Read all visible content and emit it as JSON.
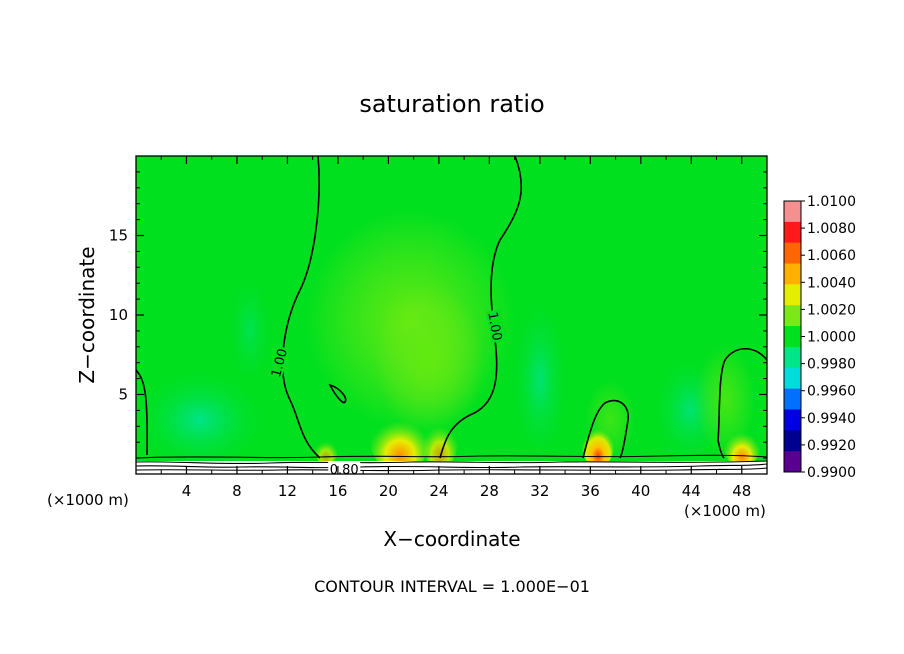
{
  "chart_data": {
    "type": "heatmap",
    "title": "saturation ratio",
    "xlabel": "X−coordinate",
    "ylabel": "Z−coordinate",
    "x_unit_label": "(×1000 m)",
    "x_unit_label_right": "(×1000 m)",
    "xlim": [
      0,
      50
    ],
    "ylim": [
      0,
      20
    ],
    "x_ticks": [
      4,
      8,
      12,
      16,
      20,
      24,
      28,
      32,
      36,
      40,
      44,
      48
    ],
    "y_ticks": [
      5,
      10,
      15
    ],
    "footnote": "CONTOUR INTERVAL = 1.000E−01",
    "contour_interval": 0.1,
    "contour_labels": [
      {
        "text": "1.00",
        "x": 11.3,
        "z": 7.0
      },
      {
        "text": "1.00",
        "x": 28.5,
        "z": 9.3
      },
      {
        "text": "0.80",
        "x": 16.5,
        "z": 0.3
      }
    ],
    "colorbar": {
      "levels": [
        "1.0100",
        "1.0080",
        "1.0060",
        "1.0040",
        "1.0020",
        "1.0000",
        "0.9980",
        "0.9960",
        "0.9940",
        "0.9920",
        "0.9900"
      ],
      "colors": [
        "#f49090",
        "#ff1a1a",
        "#ff6600",
        "#ffb000",
        "#e6ee00",
        "#7be81a",
        "#00e01e",
        "#00e48a",
        "#00dcdc",
        "#0070ff",
        "#0000e0",
        "#000090",
        "#5a0090"
      ]
    },
    "field_base_value": 1.0,
    "features": [
      {
        "x": 20.5,
        "z": 10.0,
        "value": 1.0015
      },
      {
        "x": 21.5,
        "z": 1.5,
        "value": 1.004
      },
      {
        "x": 36.5,
        "z": 1.2,
        "value": 1.005
      },
      {
        "x": 48.0,
        "z": 1.2,
        "value": 1.003
      },
      {
        "x": 5.0,
        "z": 3.5,
        "value": 0.998
      },
      {
        "x": 32.0,
        "z": 4.0,
        "value": 0.998
      }
    ]
  }
}
